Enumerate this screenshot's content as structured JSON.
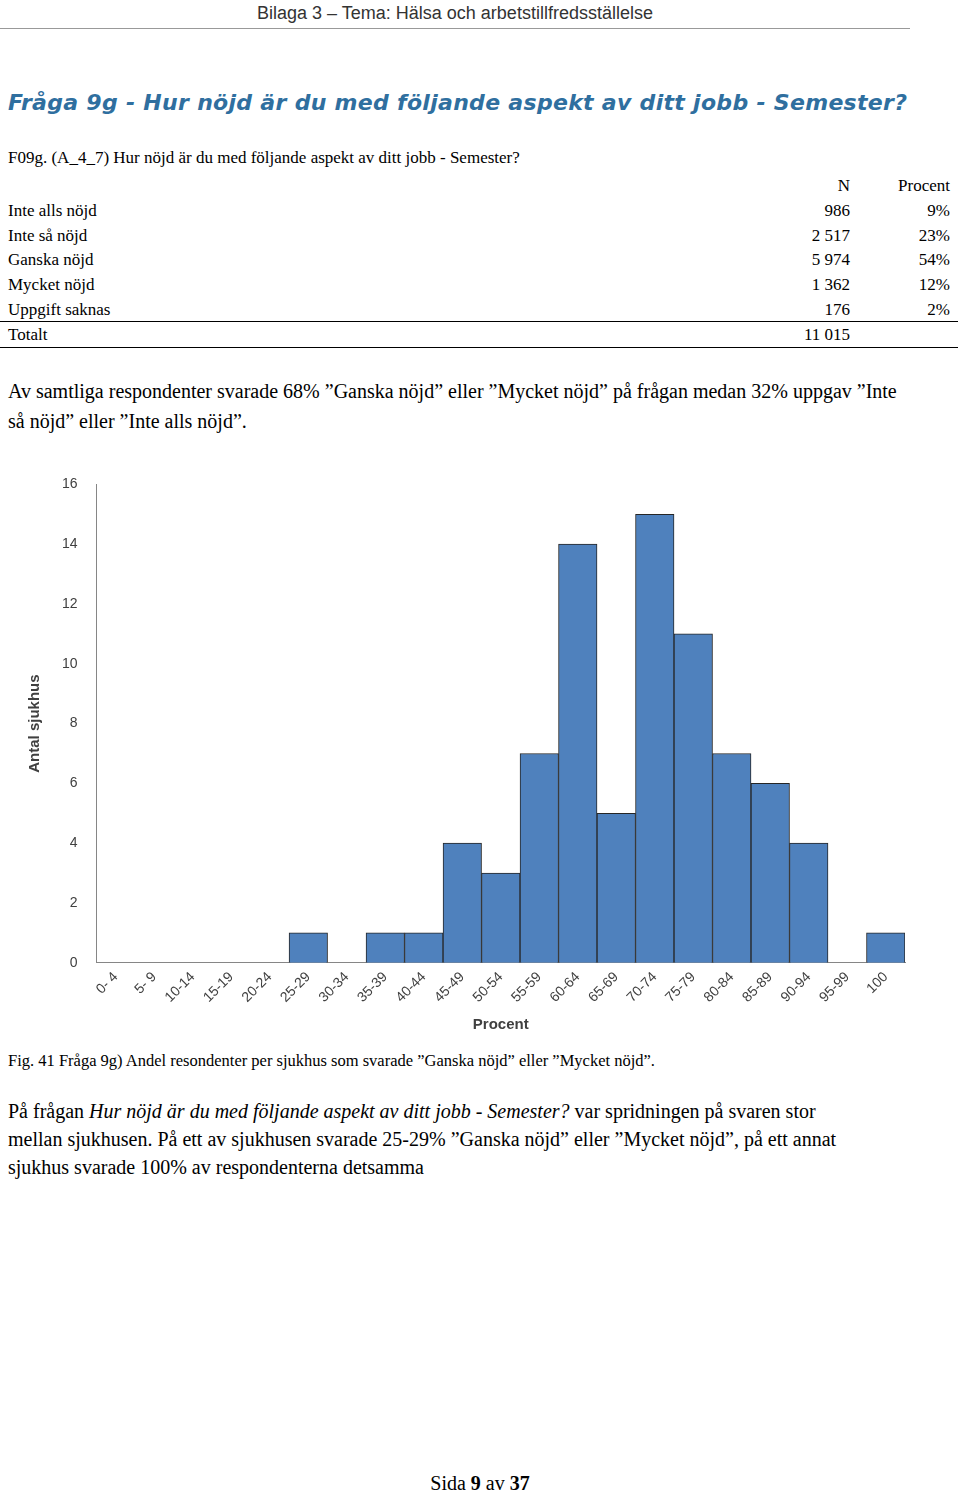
{
  "header": "Bilaga 3 – Tema: Hälsa och arbetstillfredsställelse",
  "title": "Fråga 9g - Hur nöjd är du med följande aspekt av ditt jobb - Semester?",
  "question": "F09g. (A_4_7) Hur nöjd är du med följande aspekt av ditt jobb - Semester?",
  "table": {
    "columns": [
      "N",
      "Procent"
    ],
    "rows": [
      [
        "Inte alls nöjd",
        "986",
        "9%"
      ],
      [
        "Inte så nöjd",
        "2 517",
        "23%"
      ],
      [
        "Ganska nöjd",
        "5 974",
        "54%"
      ],
      [
        "Mycket nöjd",
        "1 362",
        "12%"
      ],
      [
        "Uppgift saknas",
        "176",
        "2%"
      ],
      [
        "Totalt",
        "11 015"
      ]
    ]
  },
  "summary": "Av samtliga respondenter svarade 68% ”Ganska nöjd” eller ”Mycket nöjd” på frågan medan 32% uppgav ”Inte så nöjd” eller ”Inte alls nöjd”.",
  "chart_data": {
    "type": "bar",
    "categories": [
      "0- 4",
      "5- 9",
      "10-14",
      "15-19",
      "20-24",
      "25-29",
      "30-34",
      "35-39",
      "40-44",
      "45-49",
      "50-54",
      "55-59",
      "60-64",
      "65-69",
      "70-74",
      "75-79",
      "80-84",
      "85-89",
      "90-94",
      "95-99",
      "100"
    ],
    "values": [
      0,
      0,
      0,
      0,
      0,
      1,
      0,
      1,
      1,
      4,
      3,
      7,
      14,
      5,
      15,
      11,
      7,
      6,
      4,
      0,
      1
    ],
    "color": "#4f81bd",
    "xlabel": "Procent",
    "ylabel": "Antal sjukhus",
    "ylim": [
      0,
      16
    ],
    "yticks": [
      0,
      2,
      4,
      6,
      8,
      10,
      12,
      14,
      16
    ],
    "grid": false
  },
  "caption": "Fig. 41 Fråga 9g) Andel resondenter per sjukhus som svarade ”Ganska nöjd” eller ”Mycket nöjd”.",
  "conclusion": [
    {
      "text": "På frågan "
    },
    {
      "text": "Hur nöjd är du med följande aspekt av ditt jobb - Semester?",
      "italic": true
    },
    {
      "text": " var spridningen på svaren stor mellan sjukhusen. På ett av sjukhusen svarade 25-29% ”Ganska nöjd” eller ”Mycket nöjd”, på ett annat sjukhus svarade 100% av respondenterna detsamma"
    }
  ],
  "footer": [
    {
      "text": "Sida "
    },
    {
      "text": "9",
      "bold": true
    },
    {
      "text": " av "
    },
    {
      "text": "37",
      "bold": true
    }
  ]
}
